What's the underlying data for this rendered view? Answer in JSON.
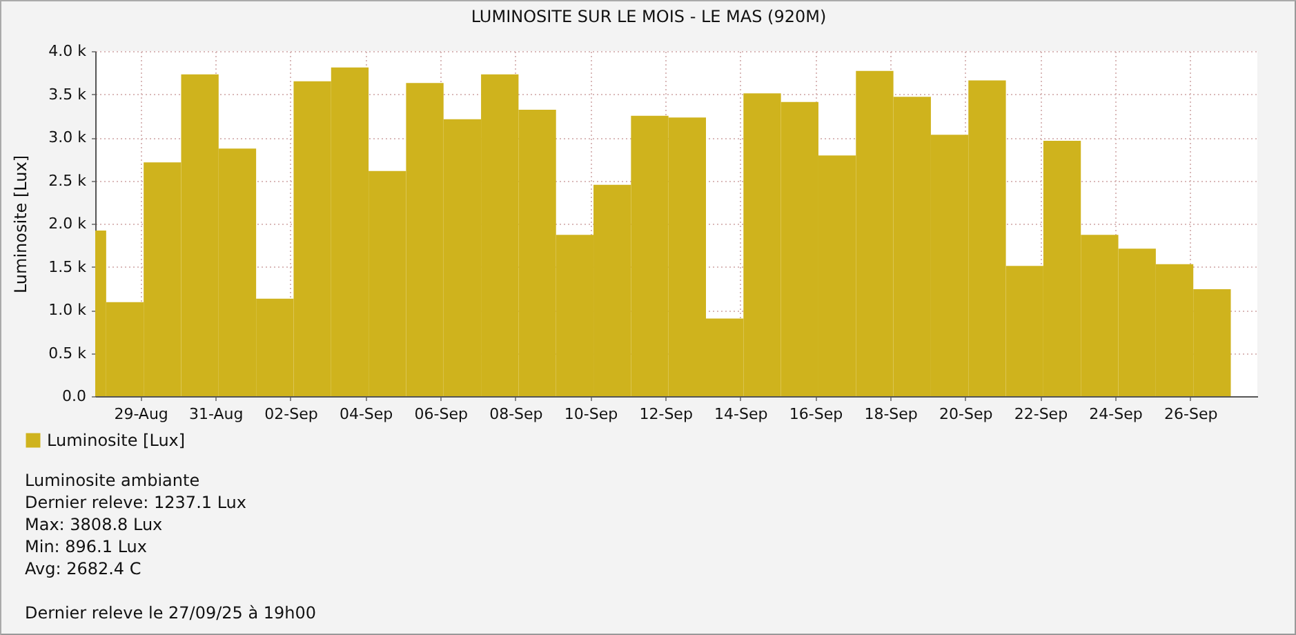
{
  "chart_data": {
    "type": "bar",
    "title": "LUMINOSITE SUR LE MOIS - LE MAS (920M)",
    "ylabel": "Luminosite [Lux]",
    "x": [
      "--08-27T22:30",
      "--08-28T14:00",
      "--08-29T14:00",
      "--08-30T14:00",
      "--08-31T14:00",
      "--09-01T14:00",
      "--09-02T14:00",
      "--09-03T14:00",
      "--09-04T14:00",
      "--09-05T14:00",
      "--09-06T14:00",
      "--09-07T14:00",
      "--09-08T14:00",
      "--09-09T14:00",
      "--09-10T14:00",
      "--09-11T14:00",
      "--09-12T14:00",
      "--09-13T14:00",
      "--09-14T14:00",
      "--09-15T14:00",
      "--09-16T14:00",
      "--09-17T14:00",
      "--09-18T14:00",
      "--09-19T14:00",
      "--09-20T14:00",
      "--09-21T14:00",
      "--09-22T14:00",
      "--09-23T14:00",
      "--09-24T14:00",
      "--09-25T14:00",
      "--09-26T14:00"
    ],
    "series": [
      {
        "name": "Luminosite [Lux]",
        "color": "#cfb31d",
        "values": [
          1920,
          1090,
          2710,
          3730,
          2870,
          1130,
          3650,
          3810,
          2610,
          3630,
          3210,
          3730,
          3320,
          1870,
          2450,
          3250,
          3230,
          900,
          3510,
          3410,
          2790,
          3770,
          3470,
          3030,
          3660,
          1510,
          2960,
          1870,
          1710,
          1530,
          1240
        ]
      }
    ],
    "xlim": [
      "--08-27T19:00",
      "--09-27T19:00"
    ],
    "xticks": [
      {
        "value": "--08-29",
        "label": "29-Aug"
      },
      {
        "value": "--08-31",
        "label": "31-Aug"
      },
      {
        "value": "--09-02",
        "label": "02-Sep"
      },
      {
        "value": "--09-04",
        "label": "04-Sep"
      },
      {
        "value": "--09-06",
        "label": "06-Sep"
      },
      {
        "value": "--09-08",
        "label": "08-Sep"
      },
      {
        "value": "--09-10",
        "label": "10-Sep"
      },
      {
        "value": "--09-12",
        "label": "12-Sep"
      },
      {
        "value": "--09-14",
        "label": "14-Sep"
      },
      {
        "value": "--09-16",
        "label": "16-Sep"
      },
      {
        "value": "--09-18",
        "label": "18-Sep"
      },
      {
        "value": "--09-20",
        "label": "20-Sep"
      },
      {
        "value": "--09-22",
        "label": "22-Sep"
      },
      {
        "value": "--09-24",
        "label": "24-Sep"
      },
      {
        "value": "--09-26",
        "label": "26-Sep"
      }
    ],
    "ylim": [
      0,
      4000
    ],
    "yticks": [
      {
        "value": 0,
        "label": "0.0"
      },
      {
        "value": 500,
        "label": "0.5 k"
      },
      {
        "value": 1000,
        "label": "1.0 k"
      },
      {
        "value": 1500,
        "label": "1.5 k"
      },
      {
        "value": 2000,
        "label": "2.0 k"
      },
      {
        "value": 2500,
        "label": "2.5 k"
      },
      {
        "value": 3000,
        "label": "3.0 k"
      },
      {
        "value": 3500,
        "label": "3.5 k"
      },
      {
        "value": 4000,
        "label": "4.0 k"
      }
    ],
    "grid": true,
    "legend": "bottom",
    "annotations": [
      "Luminosite ambiante",
      "Dernier releve: 1237.1 Lux",
      "Max: 3808.8 Lux",
      "Min: 896.1 Lux",
      "Avg: 2682.4 C",
      "Dernier releve le 27/09/25 à 19h00"
    ]
  }
}
